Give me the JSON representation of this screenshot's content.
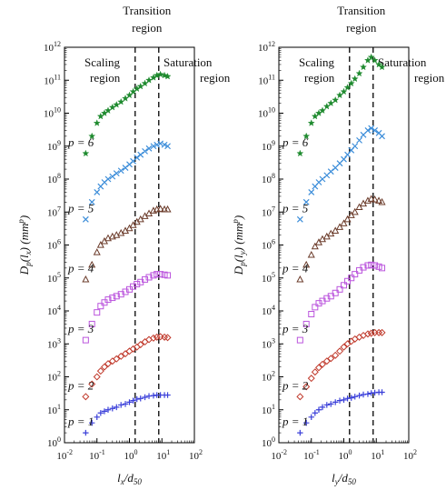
{
  "figure": {
    "transition_label_lines": [
      "Transition",
      "region"
    ],
    "scaling_label_lines": [
      "Scaling",
      "region"
    ],
    "saturation_label_lines": [
      "Saturation",
      "region"
    ]
  },
  "chart_data": [
    {
      "type": "scatter",
      "xscale": "log",
      "yscale": "log",
      "xlim": [
        0.01,
        100
      ],
      "ylim": [
        1,
        1000000000000
      ],
      "x_tick_labels": [
        "10-2",
        "10-1",
        "100",
        "101",
        "102"
      ],
      "y_tick_labels": [
        "100",
        "101",
        "102",
        "103",
        "104",
        "105",
        "106",
        "107",
        "108",
        "109",
        "1010",
        "1011",
        "1012"
      ],
      "xlabel": {
        "base": "l",
        "sub": "x",
        "mid": "/d",
        "sub2": "50"
      },
      "ylabel": {
        "base": "D",
        "sub1": "p",
        "arg": "(l",
        "sub2": "x",
        "tail": ") (mm",
        "sup": "p",
        "close": ")"
      },
      "vlines_x": [
        1.5,
        8
      ],
      "series": [
        {
          "label": "p = 1",
          "marker": "plus",
          "color": "#3a3fd9",
          "x": [
            0.045,
            0.07,
            0.1,
            0.13,
            0.17,
            0.22,
            0.3,
            0.4,
            0.55,
            0.75,
            1.0,
            1.3,
            1.7,
            2.2,
            3,
            4,
            5.5,
            7,
            9,
            12,
            15
          ],
          "y": [
            2,
            4,
            6,
            8,
            9,
            10,
            11,
            12,
            14,
            15,
            17,
            19,
            21,
            22,
            24,
            26,
            27,
            28,
            28,
            28,
            28
          ]
        },
        {
          "label": "p = 2",
          "marker": "diamond",
          "color": "#c0392b",
          "x": [
            0.045,
            0.07,
            0.1,
            0.13,
            0.17,
            0.22,
            0.3,
            0.4,
            0.55,
            0.75,
            1.0,
            1.3,
            1.7,
            2.2,
            3,
            4,
            5.5,
            7,
            9,
            12,
            15
          ],
          "y": [
            25,
            60,
            100,
            150,
            200,
            250,
            300,
            350,
            420,
            500,
            600,
            700,
            800,
            950,
            1150,
            1350,
            1500,
            1600,
            1650,
            1600,
            1550
          ]
        },
        {
          "label": "p = 3",
          "marker": "square",
          "color": "#bb55dd",
          "x": [
            0.045,
            0.07,
            0.1,
            0.13,
            0.17,
            0.22,
            0.3,
            0.4,
            0.55,
            0.75,
            1.0,
            1.3,
            1.7,
            2.2,
            3,
            4,
            5.5,
            7,
            9,
            12,
            15
          ],
          "y": [
            1300,
            4000,
            9000,
            14000,
            18000,
            22000,
            25000,
            28000,
            32000,
            38000,
            45000,
            55000,
            65000,
            75000,
            90000,
            105000,
            120000,
            130000,
            130000,
            125000,
            120000
          ]
        },
        {
          "label": "p = 4",
          "marker": "triangle",
          "color": "#6b3b2a",
          "x": [
            0.045,
            0.07,
            0.1,
            0.13,
            0.17,
            0.22,
            0.3,
            0.4,
            0.55,
            0.75,
            1.0,
            1.3,
            1.7,
            2.2,
            3,
            4,
            5.5,
            7,
            9,
            12,
            15
          ],
          "y": [
            90000,
            250000,
            600000,
            1000000,
            1300000,
            1600000,
            1800000,
            2000000,
            2300000,
            2700000,
            3200000,
            4000000,
            5000000,
            6000000,
            7500000,
            9000000,
            11000000,
            12000000,
            12500000,
            12000000,
            12000000
          ]
        },
        {
          "label": "p = 5",
          "marker": "cross",
          "color": "#3c8dd9",
          "x": [
            0.045,
            0.07,
            0.1,
            0.13,
            0.17,
            0.22,
            0.3,
            0.4,
            0.55,
            0.75,
            1.0,
            1.3,
            1.7,
            2.2,
            3,
            4,
            5.5,
            7,
            9,
            12,
            15
          ],
          "y": [
            6000000,
            20000000,
            40000000,
            60000000,
            80000000,
            100000000,
            120000000,
            150000000,
            180000000,
            220000000,
            280000000,
            350000000,
            450000000,
            550000000,
            700000000,
            850000000,
            1000000000,
            1100000000,
            1200000000,
            1100000000,
            1000000000
          ]
        },
        {
          "label": "p = 6",
          "marker": "star",
          "color": "#1e8a2e",
          "x": [
            0.045,
            0.07,
            0.1,
            0.13,
            0.17,
            0.22,
            0.3,
            0.4,
            0.55,
            0.75,
            1.0,
            1.3,
            1.7,
            2.2,
            3,
            4,
            5.5,
            7,
            9,
            12,
            15
          ],
          "y": [
            600000000,
            2000000000,
            5000000000,
            8000000000,
            10000000000,
            12000000000,
            15000000000,
            18000000000,
            22000000000,
            28000000000,
            35000000000,
            45000000000,
            55000000000,
            65000000000,
            80000000000,
            100000000000,
            120000000000,
            140000000000,
            150000000000,
            140000000000,
            130000000000
          ]
        }
      ]
    },
    {
      "type": "scatter",
      "xscale": "log",
      "yscale": "log",
      "xlim": [
        0.01,
        100
      ],
      "ylim": [
        1,
        1000000000000
      ],
      "x_tick_labels": [
        "10-2",
        "10-1",
        "100",
        "101",
        "102"
      ],
      "y_tick_labels": [
        "100",
        "101",
        "102",
        "103",
        "104",
        "105",
        "106",
        "107",
        "108",
        "109",
        "1010",
        "1011",
        "1012"
      ],
      "xlabel": {
        "base": "l",
        "sub": "y",
        "mid": "/d",
        "sub2": "50"
      },
      "ylabel": {
        "base": "D",
        "sub1": "p",
        "arg": "(l",
        "sub2": "y",
        "tail": ") (mm",
        "sup": "p",
        "close": ")"
      },
      "vlines_x": [
        1.5,
        8
      ],
      "series": [
        {
          "label": "p = 1",
          "marker": "plus",
          "color": "#3a3fd9",
          "x": [
            0.045,
            0.07,
            0.1,
            0.13,
            0.17,
            0.22,
            0.3,
            0.4,
            0.55,
            0.75,
            1.0,
            1.3,
            1.7,
            2.2,
            3,
            4,
            5.5,
            7,
            9,
            12,
            15
          ],
          "y": [
            2,
            4,
            6,
            8,
            10,
            12,
            14,
            15,
            17,
            19,
            20,
            22,
            23,
            25,
            27,
            29,
            30,
            32,
            33,
            34,
            34
          ]
        },
        {
          "label": "p = 2",
          "marker": "diamond",
          "color": "#c0392b",
          "x": [
            0.045,
            0.07,
            0.1,
            0.13,
            0.17,
            0.22,
            0.3,
            0.4,
            0.55,
            0.75,
            1.0,
            1.3,
            1.7,
            2.2,
            3,
            4,
            5.5,
            7,
            9,
            12,
            15
          ],
          "y": [
            25,
            50,
            90,
            140,
            190,
            240,
            300,
            360,
            450,
            600,
            800,
            1000,
            1200,
            1400,
            1600,
            1800,
            2000,
            2100,
            2200,
            2200,
            2200
          ]
        },
        {
          "label": "p = 3",
          "marker": "square",
          "color": "#bb55dd",
          "x": [
            0.045,
            0.07,
            0.1,
            0.13,
            0.17,
            0.22,
            0.3,
            0.4,
            0.55,
            0.75,
            1.0,
            1.3,
            1.7,
            2.2,
            3,
            4,
            5.5,
            7,
            9,
            12,
            15
          ],
          "y": [
            1300,
            4000,
            8000,
            13000,
            17000,
            20000,
            24000,
            28000,
            35000,
            45000,
            60000,
            80000,
            100000,
            130000,
            170000,
            210000,
            240000,
            250000,
            240000,
            220000,
            200000
          ]
        },
        {
          "label": "p = 4",
          "marker": "triangle",
          "color": "#6b3b2a",
          "x": [
            0.045,
            0.07,
            0.1,
            0.13,
            0.17,
            0.22,
            0.3,
            0.4,
            0.55,
            0.75,
            1.0,
            1.3,
            1.7,
            2.2,
            3,
            4,
            5.5,
            7,
            9,
            12,
            15
          ],
          "y": [
            90000,
            250000,
            500000,
            900000,
            1200000,
            1500000,
            1800000,
            2200000,
            2700000,
            3500000,
            4500000,
            6000000,
            8000000,
            10000000,
            14000000,
            18000000,
            22000000,
            25000000,
            24000000,
            22000000,
            20000000
          ]
        },
        {
          "label": "p = 5",
          "marker": "cross",
          "color": "#3c8dd9",
          "x": [
            0.045,
            0.07,
            0.1,
            0.13,
            0.17,
            0.22,
            0.3,
            0.4,
            0.55,
            0.75,
            1.0,
            1.3,
            1.7,
            2.2,
            3,
            4,
            5.5,
            7,
            9,
            12,
            15
          ],
          "y": [
            6000000,
            20000000,
            40000000,
            60000000,
            80000000,
            100000000,
            130000000,
            170000000,
            220000000,
            300000000,
            400000000,
            550000000,
            750000000,
            1000000000,
            1500000000,
            2200000000,
            3000000000,
            3500000000,
            3000000000,
            2500000000,
            2000000000
          ]
        },
        {
          "label": "p = 6",
          "marker": "star",
          "color": "#1e8a2e",
          "x": [
            0.045,
            0.07,
            0.1,
            0.13,
            0.17,
            0.22,
            0.3,
            0.4,
            0.55,
            0.75,
            1.0,
            1.3,
            1.7,
            2.2,
            3,
            4,
            5.5,
            7,
            9,
            12,
            15
          ],
          "y": [
            600000000,
            2000000000,
            5000000000,
            8000000000,
            10000000000,
            12000000000,
            16000000000,
            20000000000,
            25000000000,
            35000000000,
            45000000000,
            60000000000,
            80000000000,
            110000000000,
            160000000000,
            250000000000,
            400000000000,
            500000000000,
            400000000000,
            300000000000,
            250000000000
          ]
        }
      ]
    }
  ]
}
